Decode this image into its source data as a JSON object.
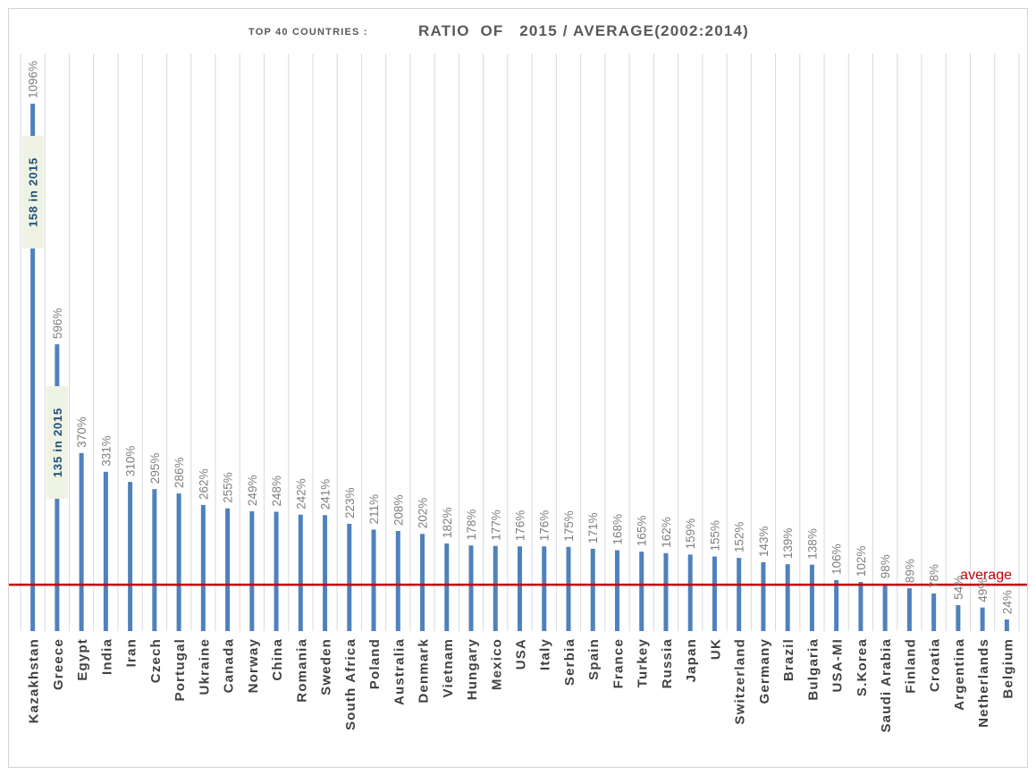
{
  "chart_data": {
    "type": "bar",
    "subtitle": "TOP 40 COUNTRIES :",
    "title": "RATIO  OF   2015 / AVERAGE(2002:2014)",
    "categories": [
      "Kazakhstan",
      "Greece",
      "Egypt",
      "India",
      "Iran",
      "Czech",
      "Portugal",
      "Ukraine",
      "Canada",
      "Norway",
      "China",
      "Romania",
      "Sweden",
      "South Africa",
      "Poland",
      "Australia",
      "Denmark",
      "Vietnam",
      "Hungary",
      "Mexico",
      "USA",
      "Italy",
      "Serbia",
      "Spain",
      "France",
      "Turkey",
      "Russia",
      "Japan",
      "UK",
      "Switzerland",
      "Germany",
      "Brazil",
      "Bulgaria",
      "USA-MI",
      "S.Korea",
      "Saudi Arabia",
      "Finland",
      "Croatia",
      "Argentina",
      "Netherlands",
      "Belgium"
    ],
    "values": [
      1096,
      596,
      370,
      331,
      310,
      295,
      286,
      262,
      255,
      249,
      248,
      242,
      241,
      223,
      211,
      208,
      202,
      182,
      178,
      177,
      176,
      176,
      175,
      171,
      168,
      165,
      162,
      159,
      155,
      152,
      143,
      139,
      138,
      106,
      102,
      98,
      89,
      78,
      54,
      49,
      24
    ],
    "value_labels": [
      "1096%",
      "596%",
      "370%",
      "331%",
      "310%",
      "295%",
      "286%",
      "262%",
      "255%",
      "249%",
      "248%",
      "242%",
      "241%",
      "223%",
      "211%",
      "208%",
      "202%",
      "182%",
      "178%",
      "177%",
      "176%",
      "176%",
      "175%",
      "171%",
      "168%",
      "165%",
      "162%",
      "159%",
      "155%",
      "152%",
      "143%",
      "139%",
      "138%",
      "106%",
      "102%",
      "98%",
      "89%",
      "78%",
      "54%",
      "49%",
      "24%"
    ],
    "reference_line": {
      "label": "average",
      "value": 100,
      "color": "#c00000"
    },
    "annotations": [
      {
        "category": "Kazakhstan",
        "text": "158  in  2015"
      },
      {
        "category": "Greece",
        "text": "135  in  2015"
      }
    ],
    "ylim": [
      0,
      1200
    ],
    "grid": true,
    "bar_color": "#4f81bd",
    "xlabel": "",
    "ylabel": ""
  }
}
